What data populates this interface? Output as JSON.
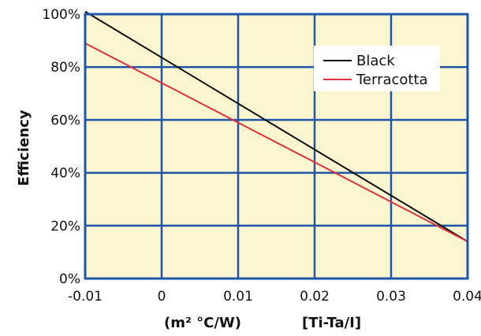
{
  "chart_data": {
    "type": "line",
    "ylabel": "Efficiency",
    "xlabel_parts": [
      "(m² °C/W)",
      "[Ti-Ta/I]"
    ],
    "xlim": [
      -0.01,
      0.04
    ],
    "ylim": [
      0,
      100
    ],
    "x_ticks": [
      -0.01,
      0,
      0.01,
      0.02,
      0.03,
      0.04
    ],
    "x_tick_labels": [
      "-0.01",
      "0",
      "0.01",
      "0.02",
      "0.03",
      "0.04"
    ],
    "y_ticks": [
      0,
      20,
      40,
      60,
      80,
      100
    ],
    "y_tick_labels": [
      "0%",
      "20%",
      "40%",
      "60%",
      "80%",
      "100%"
    ],
    "grid": true,
    "legend_position": "top-right",
    "series": [
      {
        "name": "Black",
        "color": "#111111",
        "x": [
          -0.01,
          0.04
        ],
        "y": [
          101,
          14
        ]
      },
      {
        "name": "Terracotta",
        "color": "#e0323c",
        "x": [
          -0.01,
          0.04
        ],
        "y": [
          89,
          14
        ]
      }
    ],
    "colors": {
      "plot_background": "#fbf6cf",
      "grid": "#1f56a8",
      "frame": "#1f56a8"
    }
  }
}
